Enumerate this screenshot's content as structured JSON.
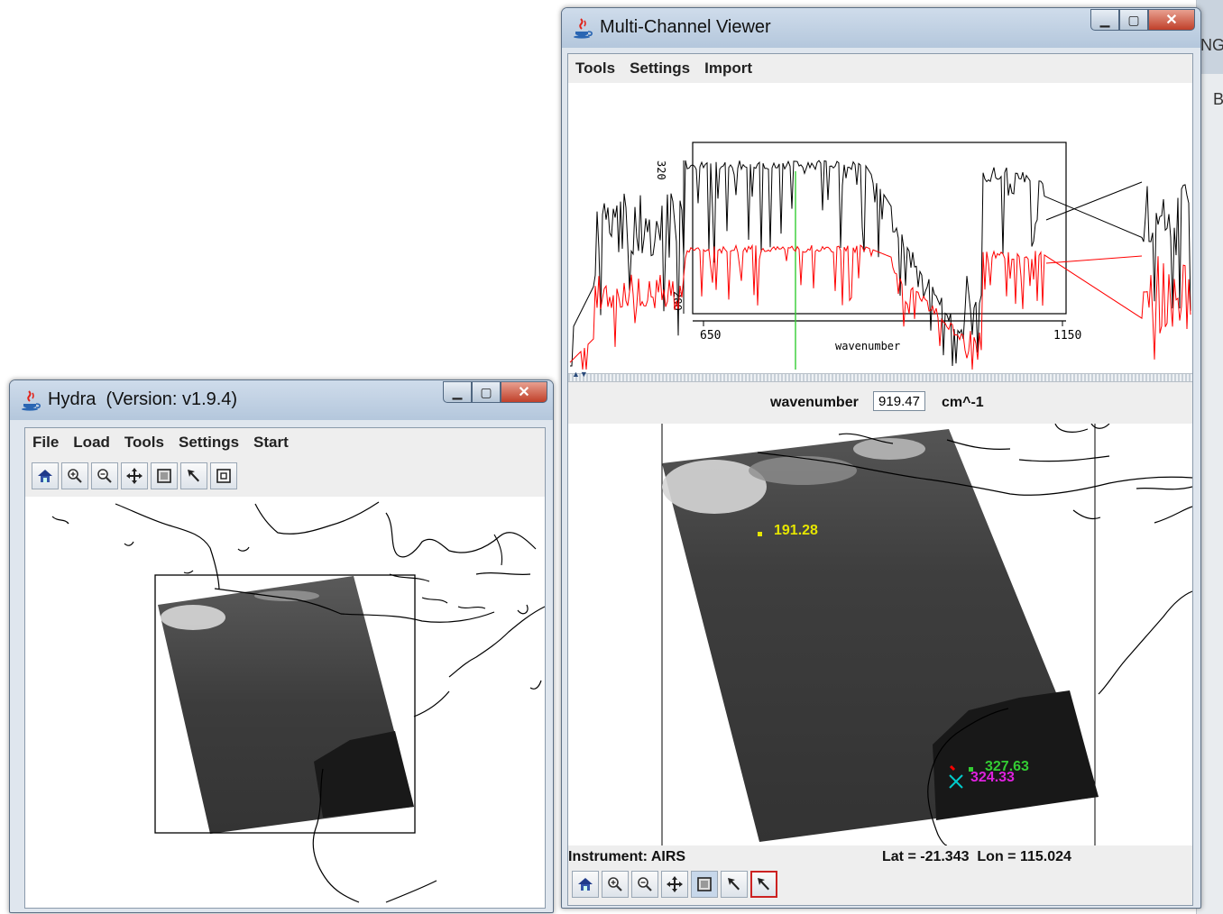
{
  "hydra_window": {
    "title": "Hydra  (Version: v1.9.4)",
    "menu": [
      "File",
      "Load",
      "Tools",
      "Settings",
      "Start"
    ],
    "toolbar_icons": [
      "home-icon",
      "zoom-in-icon",
      "zoom-out-icon",
      "pan-icon",
      "box-select-icon",
      "pointer-icon",
      "reset-view-icon"
    ]
  },
  "mcv_window": {
    "title": "Multi-Channel Viewer",
    "menu": [
      "Tools",
      "Settings",
      "Import"
    ],
    "spectrum": {
      "y_tick_labels": [
        "320",
        "280"
      ],
      "x_tick_labels": [
        "650",
        "1150"
      ],
      "xlabel": "wavenumber",
      "series_colors": {
        "series_a": "#000000",
        "series_b": "#ff0000",
        "cursor": "#33cc33"
      }
    },
    "wavenumber": {
      "label": "wavenumber",
      "value": "919.47",
      "unit": "cm^-1"
    },
    "probes": [
      {
        "value": "191.28",
        "color": "#e6e600"
      },
      {
        "value": "327.63",
        "color": "#33cc33"
      },
      {
        "value": "324.33",
        "color": "#dd22dd"
      }
    ],
    "instrument": "Instrument: AIRS",
    "coords": "Lat = -21.343  Lon = 115.024",
    "toolbar_icons": [
      "home-icon",
      "zoom-in-icon",
      "zoom-out-icon",
      "pan-icon",
      "box-select-icon",
      "pointer-icon",
      "probe-pointer-icon"
    ]
  },
  "background": {
    "right_edge_glyphs": [
      "NG",
      "B"
    ]
  }
}
